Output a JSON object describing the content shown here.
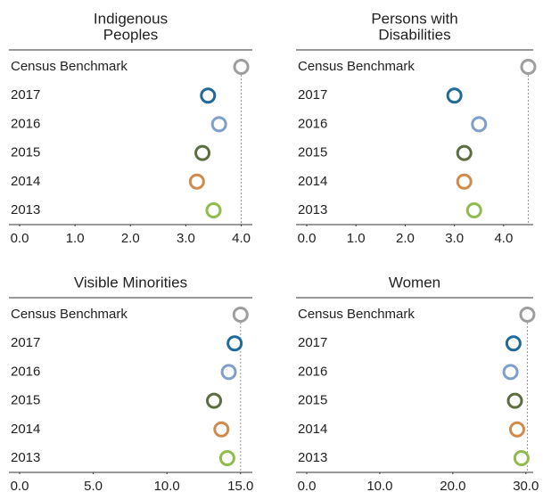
{
  "chart_data": [
    {
      "type": "dot",
      "title_lines": [
        "Indigenous",
        "Peoples"
      ],
      "categories": [
        "Census Benchmark",
        "2017",
        "2016",
        "2015",
        "2014",
        "2013"
      ],
      "values": [
        4.0,
        3.4,
        3.6,
        3.3,
        3.2,
        3.5
      ],
      "colors": [
        "#9e9e9e",
        "#1f6a99",
        "#7f9fc9",
        "#5c6e3f",
        "#d08a4c",
        "#8fbc4b"
      ],
      "xlim": [
        0,
        4.2
      ],
      "xticks": [
        {
          "value": 0,
          "label": "0.0"
        },
        {
          "value": 1,
          "label": "1.0"
        },
        {
          "value": 2,
          "label": "2.0"
        },
        {
          "value": 3,
          "label": "3.0"
        },
        {
          "value": 4,
          "label": "4.0"
        }
      ]
    },
    {
      "type": "dot",
      "title_lines": [
        "Persons with",
        "Disabilities"
      ],
      "categories": [
        "Census Benchmark",
        "2017",
        "2016",
        "2015",
        "2014",
        "2013"
      ],
      "values": [
        4.5,
        3.0,
        3.5,
        3.2,
        3.2,
        3.4
      ],
      "colors": [
        "#9e9e9e",
        "#1f6a99",
        "#7f9fc9",
        "#5c6e3f",
        "#d08a4c",
        "#8fbc4b"
      ],
      "xlim": [
        0,
        4.6
      ],
      "xticks": [
        {
          "value": 0,
          "label": "0.0"
        },
        {
          "value": 1,
          "label": "1.0"
        },
        {
          "value": 2,
          "label": "2.0"
        },
        {
          "value": 3,
          "label": "3.0"
        },
        {
          "value": 4,
          "label": "4.0"
        }
      ]
    },
    {
      "type": "dot",
      "title_lines": [
        "Visible Minorities"
      ],
      "categories": [
        "Census Benchmark",
        "2017",
        "2016",
        "2015",
        "2014",
        "2013"
      ],
      "values": [
        15.0,
        14.6,
        14.2,
        13.2,
        13.7,
        14.1
      ],
      "colors": [
        "#9e9e9e",
        "#1f6a99",
        "#7f9fc9",
        "#5c6e3f",
        "#d08a4c",
        "#8fbc4b"
      ],
      "xlim": [
        0,
        15.8
      ],
      "xticks": [
        {
          "value": 0,
          "label": "0.0"
        },
        {
          "value": 5,
          "label": "5.0"
        },
        {
          "value": 10,
          "label": "10.0"
        },
        {
          "value": 15,
          "label": "15.0"
        }
      ]
    },
    {
      "type": "dot",
      "title_lines": [
        "Women"
      ],
      "categories": [
        "Census Benchmark",
        "2017",
        "2016",
        "2015",
        "2014",
        "2013"
      ],
      "values": [
        30.2,
        28.3,
        27.9,
        28.5,
        28.8,
        29.4
      ],
      "colors": [
        "#9e9e9e",
        "#1f6a99",
        "#7f9fc9",
        "#5c6e3f",
        "#d08a4c",
        "#8fbc4b"
      ],
      "xlim": [
        0,
        31
      ],
      "xticks": [
        {
          "value": 0,
          "label": "0.0"
        },
        {
          "value": 10,
          "label": "10.0"
        },
        {
          "value": 20,
          "label": "20.0"
        },
        {
          "value": 30,
          "label": "30.0"
        }
      ]
    }
  ]
}
